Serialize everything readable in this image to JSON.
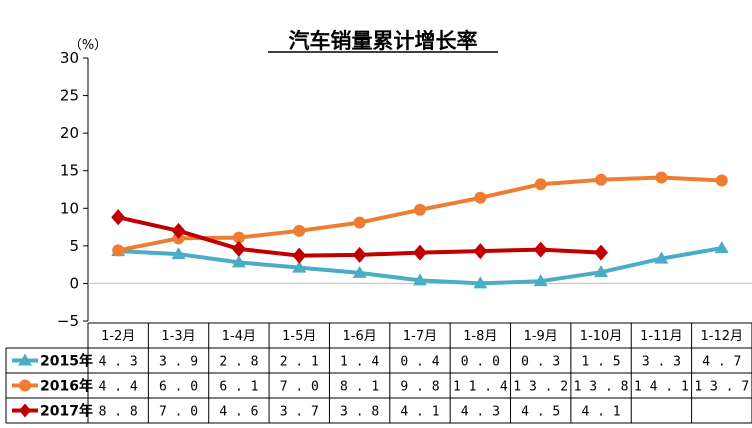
{
  "chart_data": {
    "type": "line",
    "title": "汽车销量累计增长率",
    "unit_label": "（%）",
    "categories": [
      "1-2月",
      "1-3月",
      "1-4月",
      "1-5月",
      "1-6月",
      "1-7月",
      "1-8月",
      "1-9月",
      "1-10月",
      "1-11月",
      "1-12月"
    ],
    "ylim": [
      -5,
      30
    ],
    "yticks": [
      -5,
      0,
      5,
      10,
      15,
      20,
      25,
      30
    ],
    "legend_placement": "table-left",
    "series": [
      {
        "name": "2015年",
        "color": "#4BACC6",
        "marker": "triangle",
        "values": [
          4.3,
          3.9,
          2.8,
          2.1,
          1.4,
          0.4,
          0.0,
          0.3,
          1.5,
          3.3,
          4.7
        ],
        "labels": [
          "4.3",
          "3.9",
          "2.8",
          "2.1",
          "1.4",
          "0.4",
          "0.0",
          "0.3",
          "1.5",
          "3.3",
          "4.7"
        ]
      },
      {
        "name": "2016年",
        "color": "#ED7D31",
        "marker": "circle",
        "values": [
          4.4,
          6.0,
          6.1,
          7.0,
          8.1,
          9.8,
          11.4,
          13.2,
          13.8,
          14.1,
          13.7
        ],
        "labels": [
          "4.4",
          "6.0",
          "6.1",
          "7.0",
          "8.1",
          "9.8",
          "11.4",
          "13.2",
          "13.8",
          "14.1",
          "13.7"
        ]
      },
      {
        "name": "2017年",
        "color": "#C00000",
        "marker": "diamond",
        "values": [
          8.8,
          7.0,
          4.6,
          3.7,
          3.8,
          4.1,
          4.3,
          4.5,
          4.1,
          null,
          null
        ],
        "labels": [
          "8.8",
          "7.0",
          "4.6",
          "3.7",
          "3.8",
          "4.1",
          "4.3",
          "4.5",
          "4.1",
          "",
          ""
        ]
      }
    ]
  }
}
